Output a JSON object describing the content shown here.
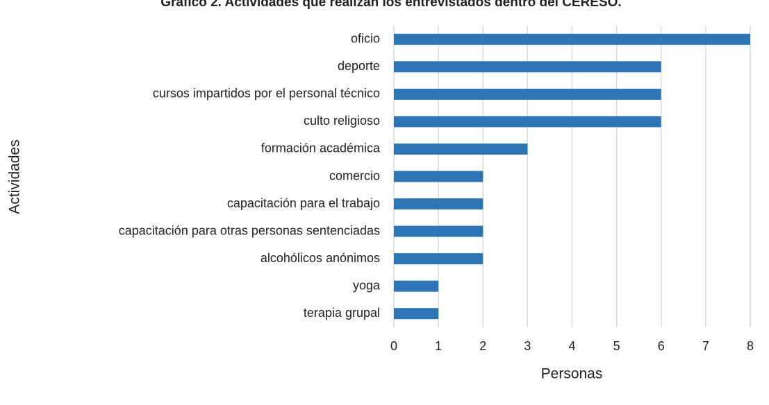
{
  "chart_data": {
    "type": "bar",
    "orientation": "horizontal",
    "title": "Gráfico 2. Actividades que realizan los entrevistados dentro del CERESO.",
    "xlabel": "Personas",
    "ylabel": "Actividades",
    "categories": [
      "oficio",
      "deporte",
      "cursos impartidos por el personal técnico",
      "culto religioso",
      "formación académica",
      "comercio",
      "capacitación para el trabajo",
      "capacitación para otras personas sentenciadas",
      "alcohólicos anónimos",
      "yoga",
      "terapia grupal"
    ],
    "values": [
      8,
      6,
      6,
      6,
      3,
      2,
      2,
      2,
      2,
      1,
      1
    ],
    "color": "#2e75b6",
    "xlim": [
      0,
      8
    ],
    "xticks": [
      0,
      1,
      2,
      3,
      4,
      5,
      6,
      7,
      8
    ],
    "grid": true
  }
}
